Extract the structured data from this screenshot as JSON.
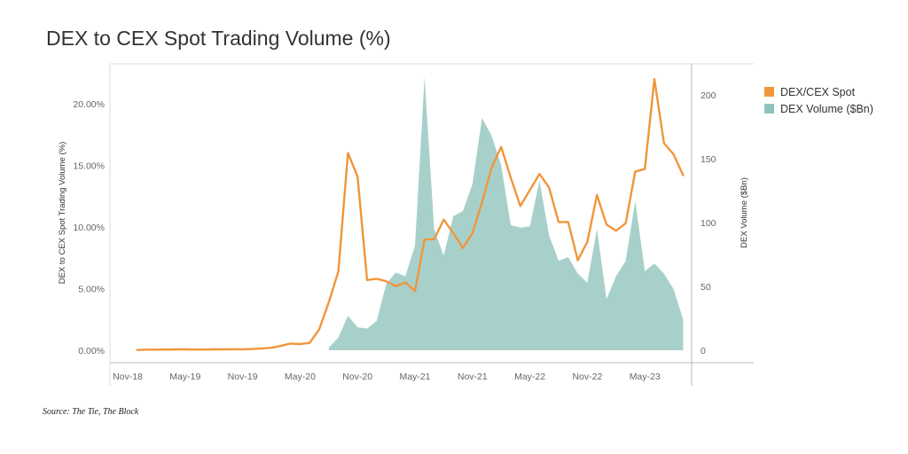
{
  "title": "DEX to CEX Spot Trading Volume (%)",
  "source": "Source: The Tie, The Block",
  "colors": {
    "line": "#F0963B",
    "area": "#8FC3BB",
    "grid": "#dddddd",
    "axis": "#bbbbbb"
  },
  "chart_data": {
    "type": "line",
    "x_tick_labels": [
      "Nov-18",
      "May-19",
      "Nov-19",
      "May-20",
      "Nov-20",
      "May-21",
      "Nov-21",
      "May-22",
      "Nov-22",
      "May-23"
    ],
    "y_left": {
      "label": "DEX to CEX Spot Trading Volume (%)",
      "ticks": [
        "0.00%",
        "5.00%",
        "10.00%",
        "15.00%",
        "20.00%"
      ],
      "range": [
        0,
        22.5
      ]
    },
    "y_right": {
      "label": "DEX Volume ($Bn)",
      "ticks": [
        "0",
        "50",
        "100",
        "150",
        "200"
      ],
      "range": [
        0,
        216
      ]
    },
    "legend_position": "right",
    "grid": false,
    "series": [
      {
        "name": "DEX/CEX Spot",
        "axis": "left",
        "type": "line",
        "points": [
          [
            "2018-12",
            0.02
          ],
          [
            "2019-01",
            0.05
          ],
          [
            "2019-02",
            0.05
          ],
          [
            "2019-03",
            0.06
          ],
          [
            "2019-04",
            0.07
          ],
          [
            "2019-05",
            0.07
          ],
          [
            "2019-06",
            0.06
          ],
          [
            "2019-07",
            0.06
          ],
          [
            "2019-08",
            0.07
          ],
          [
            "2019-09",
            0.07
          ],
          [
            "2019-10",
            0.08
          ],
          [
            "2019-11",
            0.08
          ],
          [
            "2019-12",
            0.1
          ],
          [
            "2020-01",
            0.15
          ],
          [
            "2020-02",
            0.2
          ],
          [
            "2020-03",
            0.35
          ],
          [
            "2020-04",
            0.55
          ],
          [
            "2020-05",
            0.5
          ],
          [
            "2020-06",
            0.6
          ],
          [
            "2020-07",
            1.7
          ],
          [
            "2020-08",
            3.9
          ],
          [
            "2020-09",
            6.4
          ],
          [
            "2020-10",
            16.0
          ],
          [
            "2020-11",
            14.1
          ],
          [
            "2020-12",
            5.7
          ],
          [
            "2021-01",
            5.8
          ],
          [
            "2021-02",
            5.6
          ],
          [
            "2021-03",
            5.2
          ],
          [
            "2021-04",
            5.5
          ],
          [
            "2021-05",
            4.8
          ],
          [
            "2021-06",
            9.0
          ],
          [
            "2021-07",
            9.0
          ],
          [
            "2021-08",
            10.6
          ],
          [
            "2021-09",
            9.5
          ],
          [
            "2021-10",
            8.3
          ],
          [
            "2021-11",
            9.5
          ],
          [
            "2021-12",
            12.0
          ],
          [
            "2022-01",
            14.8
          ],
          [
            "2022-02",
            16.5
          ],
          [
            "2022-03",
            14.0
          ],
          [
            "2022-04",
            11.7
          ],
          [
            "2022-05",
            13.0
          ],
          [
            "2022-06",
            14.3
          ],
          [
            "2022-07",
            13.2
          ],
          [
            "2022-08",
            10.4
          ],
          [
            "2022-09",
            10.4
          ],
          [
            "2022-10",
            7.3
          ],
          [
            "2022-11",
            8.8
          ],
          [
            "2022-12",
            12.6
          ],
          [
            "2023-01",
            10.2
          ],
          [
            "2023-02",
            9.7
          ],
          [
            "2023-03",
            10.3
          ],
          [
            "2023-04",
            14.5
          ],
          [
            "2023-05",
            14.7
          ],
          [
            "2023-06",
            22.0
          ],
          [
            "2023-07",
            16.8
          ],
          [
            "2023-08",
            15.9
          ],
          [
            "2023-09",
            14.2
          ]
        ]
      },
      {
        "name": "DEX Volume ($Bn)",
        "axis": "right",
        "type": "area",
        "points": [
          [
            "2020-08",
            2
          ],
          [
            "2020-09",
            10
          ],
          [
            "2020-10",
            27
          ],
          [
            "2020-11",
            18
          ],
          [
            "2020-12",
            17
          ],
          [
            "2021-01",
            23
          ],
          [
            "2021-02",
            52
          ],
          [
            "2021-03",
            61
          ],
          [
            "2021-04",
            58
          ],
          [
            "2021-05",
            82
          ],
          [
            "2021-06",
            214
          ],
          [
            "2021-07",
            95
          ],
          [
            "2021-08",
            74
          ],
          [
            "2021-09",
            105
          ],
          [
            "2021-10",
            109
          ],
          [
            "2021-11",
            130
          ],
          [
            "2021-12",
            182
          ],
          [
            "2022-01",
            168
          ],
          [
            "2022-02",
            145
          ],
          [
            "2022-03",
            98
          ],
          [
            "2022-04",
            96
          ],
          [
            "2022-05",
            97
          ],
          [
            "2022-06",
            133
          ],
          [
            "2022-07",
            90
          ],
          [
            "2022-08",
            70
          ],
          [
            "2022-09",
            73
          ],
          [
            "2022-10",
            60
          ],
          [
            "2022-11",
            53
          ],
          [
            "2022-12",
            95
          ],
          [
            "2023-01",
            40
          ],
          [
            "2023-02",
            58
          ],
          [
            "2023-03",
            70
          ],
          [
            "2023-04",
            117
          ],
          [
            "2023-05",
            62
          ],
          [
            "2023-06",
            68
          ],
          [
            "2023-07",
            60
          ],
          [
            "2023-08",
            48
          ],
          [
            "2023-09",
            24
          ]
        ]
      }
    ]
  }
}
